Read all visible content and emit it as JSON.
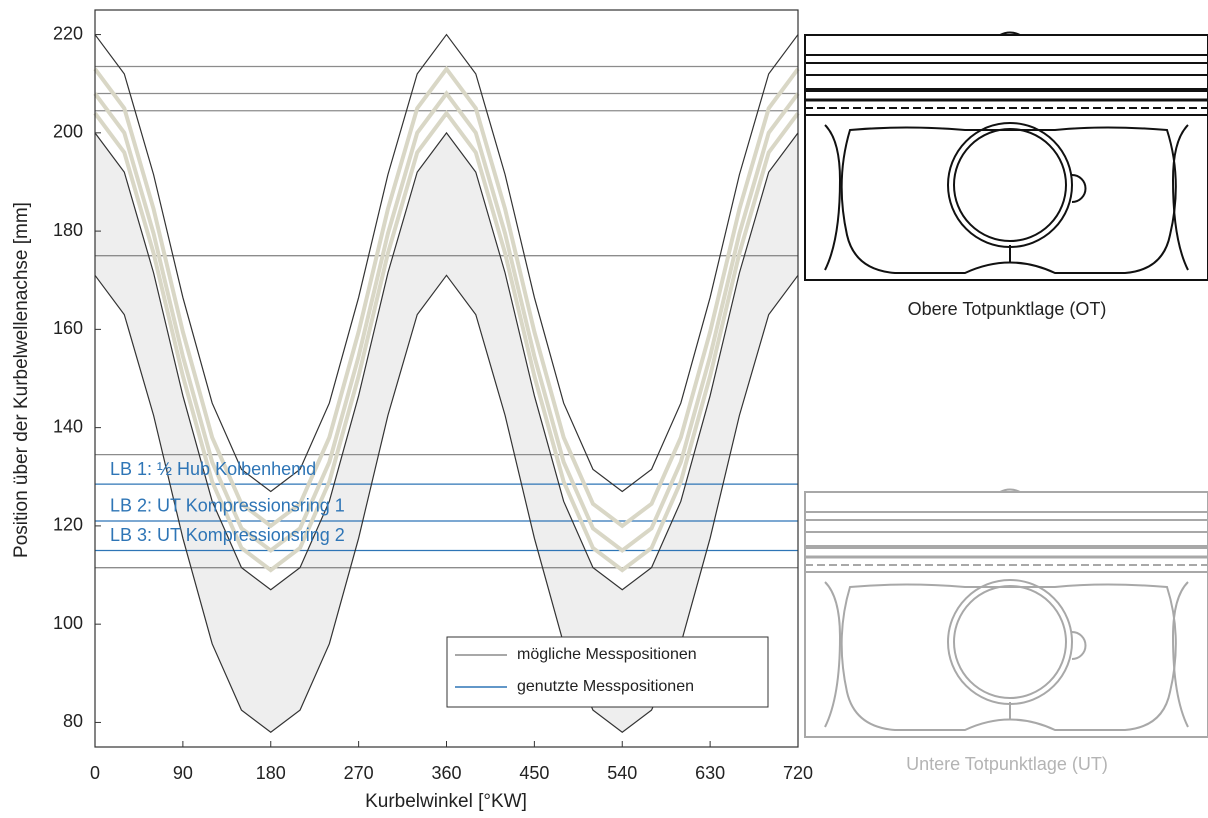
{
  "chart_data": {
    "type": "line",
    "x_label": "Kurbelwinkel [°KW]",
    "y_label": "Position über der Kurbelwellenachse [mm]",
    "xlim": [
      0,
      720
    ],
    "xticks": [
      0,
      90,
      180,
      270,
      360,
      450,
      540,
      630,
      720
    ],
    "ylim": [
      75,
      225
    ],
    "yticks": [
      80,
      100,
      120,
      140,
      160,
      180,
      200,
      220
    ],
    "x": [
      0,
      30,
      60,
      90,
      120,
      150,
      180,
      210,
      240,
      270,
      300,
      330,
      360,
      390,
      420,
      450,
      480,
      510,
      540,
      570,
      600,
      630,
      660,
      690,
      720
    ],
    "series": [
      {
        "color": "#333333",
        "values": [
          220,
          212,
          191.5,
          166.5,
          145,
          131.5,
          127,
          131.5,
          145,
          166.5,
          191.5,
          212,
          220,
          212,
          191.5,
          166.5,
          145,
          131.5,
          127,
          131.5,
          145,
          166.5,
          191.5,
          212,
          220
        ]
      },
      {
        "color": "#d9d7c6",
        "values": [
          213,
          205,
          184.5,
          159.5,
          138,
          124.5,
          120,
          124.5,
          138,
          159.5,
          184.5,
          205,
          213,
          205,
          184.5,
          159.5,
          138,
          124.5,
          120,
          124.5,
          138,
          159.5,
          184.5,
          205,
          213
        ]
      },
      {
        "color": "#d9d7c6",
        "values": [
          208,
          200,
          179.5,
          154.5,
          133,
          119.5,
          115,
          119.5,
          133,
          154.5,
          179.5,
          200,
          208,
          200,
          179.5,
          154.5,
          133,
          119.5,
          115,
          119.5,
          133,
          154.5,
          179.5,
          200,
          208
        ]
      },
      {
        "color": "#d9d7c6",
        "values": [
          204,
          196,
          175.5,
          150.5,
          129,
          115.5,
          111,
          115.5,
          129,
          150.5,
          175.5,
          196,
          204,
          196,
          175.5,
          150.5,
          129,
          115.5,
          111,
          115.5,
          129,
          150.5,
          175.5,
          196,
          204
        ]
      },
      {
        "color": "#333333",
        "values": [
          200,
          192,
          171.5,
          146.5,
          125,
          111.5,
          107,
          111.5,
          125,
          146.5,
          171.5,
          192,
          200,
          192,
          171.5,
          146.5,
          125,
          111.5,
          107,
          111.5,
          125,
          146.5,
          171.5,
          192,
          200
        ]
      },
      {
        "color": "#333333",
        "values": [
          171,
          163,
          142.5,
          117.5,
          96,
          82.5,
          78,
          82.5,
          96,
          117.5,
          142.5,
          163,
          171,
          163,
          142.5,
          117.5,
          96,
          82.5,
          78,
          82.5,
          96,
          117.5,
          142.5,
          163,
          171
        ]
      }
    ],
    "band_fill": "#eeeeee",
    "reference_lines": [
      {
        "name": "mögliche Messpositionen",
        "color": "#8c8c8c",
        "values": [
          213.5,
          208,
          204.5,
          175,
          134.5,
          111.5
        ]
      },
      {
        "name": "genutzte Messpositionen",
        "color": "#2e75b6",
        "values": [
          128.5,
          121,
          115
        ],
        "labels": [
          "LB 1: ½ Hub Kolbenhemd",
          "LB 2: UT Kompressionsring 1",
          "LB 3: UT Kompressionsring 2"
        ]
      }
    ],
    "legend": "lower right"
  },
  "figures": {
    "top_caption": "Obere Totpunktlage (OT)",
    "bottom_caption": "Untere Totpunktlage (UT)"
  }
}
